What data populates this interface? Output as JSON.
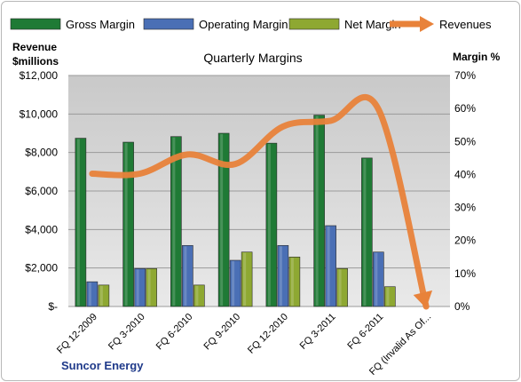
{
  "chart_data": {
    "type": "bar",
    "title": "Quarterly Margins",
    "company": "Suncor Energy",
    "left_axis": {
      "label_line1": "Revenue",
      "label_line2": "$millions",
      "ylim": [
        0,
        12000
      ],
      "ticks": [
        0,
        2000,
        4000,
        6000,
        8000,
        10000,
        12000
      ],
      "tick_labels": [
        "$-",
        "$2,000",
        "$4,000",
        "$6,000",
        "$8,000",
        "$10,000",
        "$12,000"
      ]
    },
    "right_axis": {
      "label": "Margin %",
      "ylim": [
        0,
        70
      ],
      "ticks": [
        0,
        10,
        20,
        30,
        40,
        50,
        60,
        70
      ],
      "tick_labels": [
        "0%",
        "10%",
        "20%",
        "30%",
        "40%",
        "50%",
        "60%",
        "70%"
      ]
    },
    "categories": [
      "FQ 12-2009",
      "FQ 3-2010",
      "FQ 6-2010",
      "FQ 9-2010",
      "FQ 12-2010",
      "FQ 3-2011",
      "FQ 6-2011",
      "FQ (Invalid As Of..."
    ],
    "series": [
      {
        "name": "Gross Margin",
        "kind": "bar",
        "axis": "right",
        "color": "#1f7a35",
        "values": [
          51,
          49.8,
          51.5,
          52.5,
          49.5,
          58,
          45,
          null
        ]
      },
      {
        "name": "Operating Margin",
        "kind": "bar",
        "axis": "right",
        "color": "#4a6fb5",
        "values": [
          7.5,
          11.5,
          18.5,
          14,
          18.5,
          24.5,
          16.5,
          null
        ]
      },
      {
        "name": "Net Margin",
        "kind": "bar",
        "axis": "right",
        "color": "#8ea832",
        "values": [
          6.5,
          11.5,
          6.5,
          16.5,
          15,
          11.5,
          6,
          null
        ]
      },
      {
        "name": "Revenues",
        "kind": "line",
        "axis": "left",
        "color": "#e8823a",
        "values": [
          6900,
          6900,
          7900,
          7400,
          9350,
          9650,
          10250,
          0
        ]
      }
    ],
    "grid": true,
    "legend": "top"
  }
}
